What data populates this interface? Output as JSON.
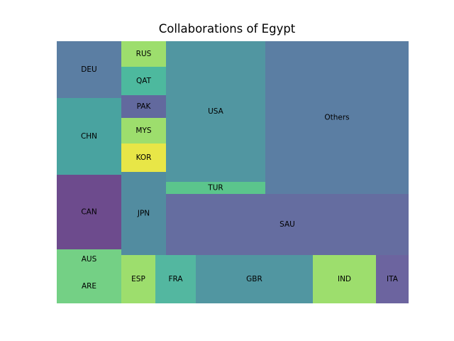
{
  "chart_data": {
    "type": "treemap",
    "title": "Collaborations of Egypt",
    "items": [
      {
        "label": "Others",
        "value": 8.12,
        "color": "#5b7ea3"
      },
      {
        "label": "USA",
        "value": 5.41,
        "color": "#5196a1"
      },
      {
        "label": "SAU",
        "value": 5.38,
        "color": "#656da0"
      },
      {
        "label": "GBR",
        "value": 2.05,
        "color": "#5196a1"
      },
      {
        "label": "CAN",
        "value": 1.73,
        "color": "#6d4b8d"
      },
      {
        "label": "CHN",
        "value": 1.73,
        "color": "#49a3a0"
      },
      {
        "label": "JPN",
        "value": 1.12,
        "color": "#528ca0"
      },
      {
        "label": "DEU",
        "value": 1.31,
        "color": "#5b7ea3"
      },
      {
        "label": "IND",
        "value": 1.1,
        "color": "#9dde6d"
      },
      {
        "label": "ARE",
        "value": 0.78,
        "color": "#74d085"
      },
      {
        "label": "ITA",
        "value": 0.58,
        "color": "#6c649f"
      },
      {
        "label": "FRA",
        "value": 0.71,
        "color": "#53b7a0"
      },
      {
        "label": "ESP",
        "value": 0.61,
        "color": "#9dde6d"
      },
      {
        "label": "KOR",
        "value": 0.46,
        "color": "#e8e647"
      },
      {
        "label": "AUS",
        "value": 0.45,
        "color": "#74d085"
      },
      {
        "label": "TUR",
        "value": 0.43,
        "color": "#5bc58c"
      },
      {
        "label": "MYS",
        "value": 0.42,
        "color": "#9dde6d"
      },
      {
        "label": "QAT",
        "value": 0.44,
        "color": "#4db99e"
      },
      {
        "label": "RUS",
        "value": 0.4,
        "color": "#9dde6d"
      },
      {
        "label": "PAK",
        "value": 0.38,
        "color": "#62699e"
      }
    ]
  }
}
